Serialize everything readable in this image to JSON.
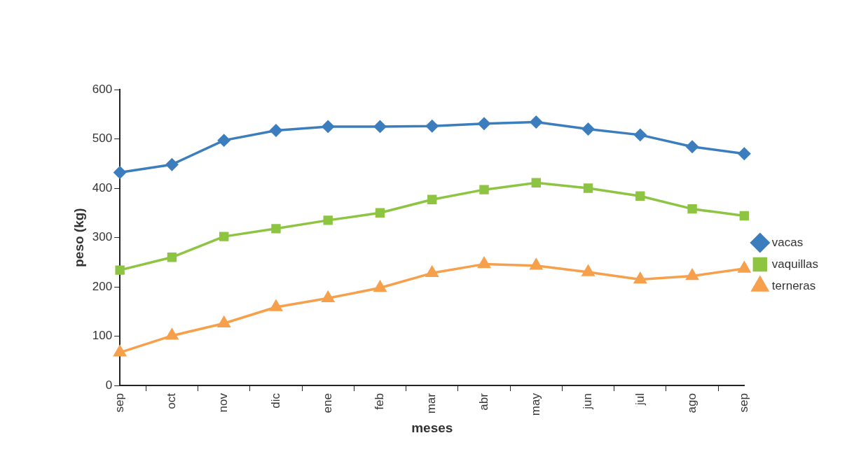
{
  "chart_data": {
    "type": "line",
    "xlabel": "meses",
    "ylabel": "peso (kg)",
    "categories": [
      "sep",
      "oct",
      "nov",
      "dic",
      "ene",
      "feb",
      "mar",
      "abr",
      "may",
      "jun",
      "jul",
      "ago",
      "sep"
    ],
    "series": [
      {
        "name": "vacas",
        "color": "#3b7dbd",
        "marker": "diamond",
        "values": [
          432,
          448,
          497,
          517,
          525,
          525,
          526,
          531,
          534,
          520,
          508,
          484,
          470
        ]
      },
      {
        "name": "vaquillas",
        "color": "#8dc441",
        "marker": "square",
        "values": [
          234,
          260,
          302,
          318,
          335,
          350,
          377,
          397,
          411,
          400,
          384,
          358,
          344
        ]
      },
      {
        "name": "terneras",
        "color": "#f6a04c",
        "marker": "triangle",
        "values": [
          67,
          101,
          126,
          159,
          177,
          198,
          228,
          246,
          243,
          230,
          215,
          222,
          237
        ]
      }
    ],
    "ylim": [
      0,
      600
    ],
    "yticks": [
      0,
      100,
      200,
      300,
      400,
      500,
      600
    ],
    "grid": false,
    "legend": "right",
    "line_style": "solid"
  }
}
